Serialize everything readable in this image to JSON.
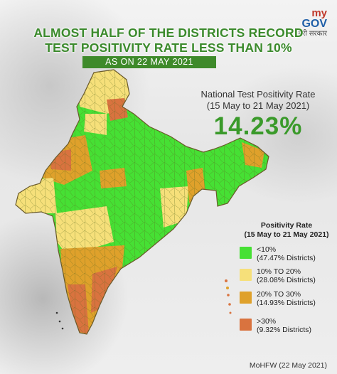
{
  "logo": {
    "my": "my",
    "gov": "GOV",
    "hindi": "मेरी सरकार"
  },
  "title": {
    "line1": "ALMOST HALF OF THE DISTRICTS RECORD",
    "line2": "TEST POSITIVITY RATE LESS THAN 10%",
    "date": "AS ON 22 MAY 2021"
  },
  "national_rate": {
    "label_line1": "National Test Positivity Rate",
    "label_line2": "(15 May to 21 May 2021)",
    "value": "14.23%"
  },
  "legend": {
    "title_line1": "Positivity Rate",
    "title_line2": "(15 May to 21 May 2021)",
    "items": [
      {
        "range": "<10%",
        "share": "(47.47% Districts)",
        "color": "#46e034"
      },
      {
        "range": "10% TO 20%",
        "share": "(28.08% Districts)",
        "color": "#f6e07a"
      },
      {
        "range": "20% TO 30%",
        "share": "(14.93% Districts)",
        "color": "#dfa12b"
      },
      {
        "range": ">30%",
        "share": "(9.32% Districts)",
        "color": "#d9733f"
      }
    ]
  },
  "map": {
    "region": "India",
    "outline_color": "#6a5a2a"
  },
  "source": "MoHFW (22 May 2021)"
}
